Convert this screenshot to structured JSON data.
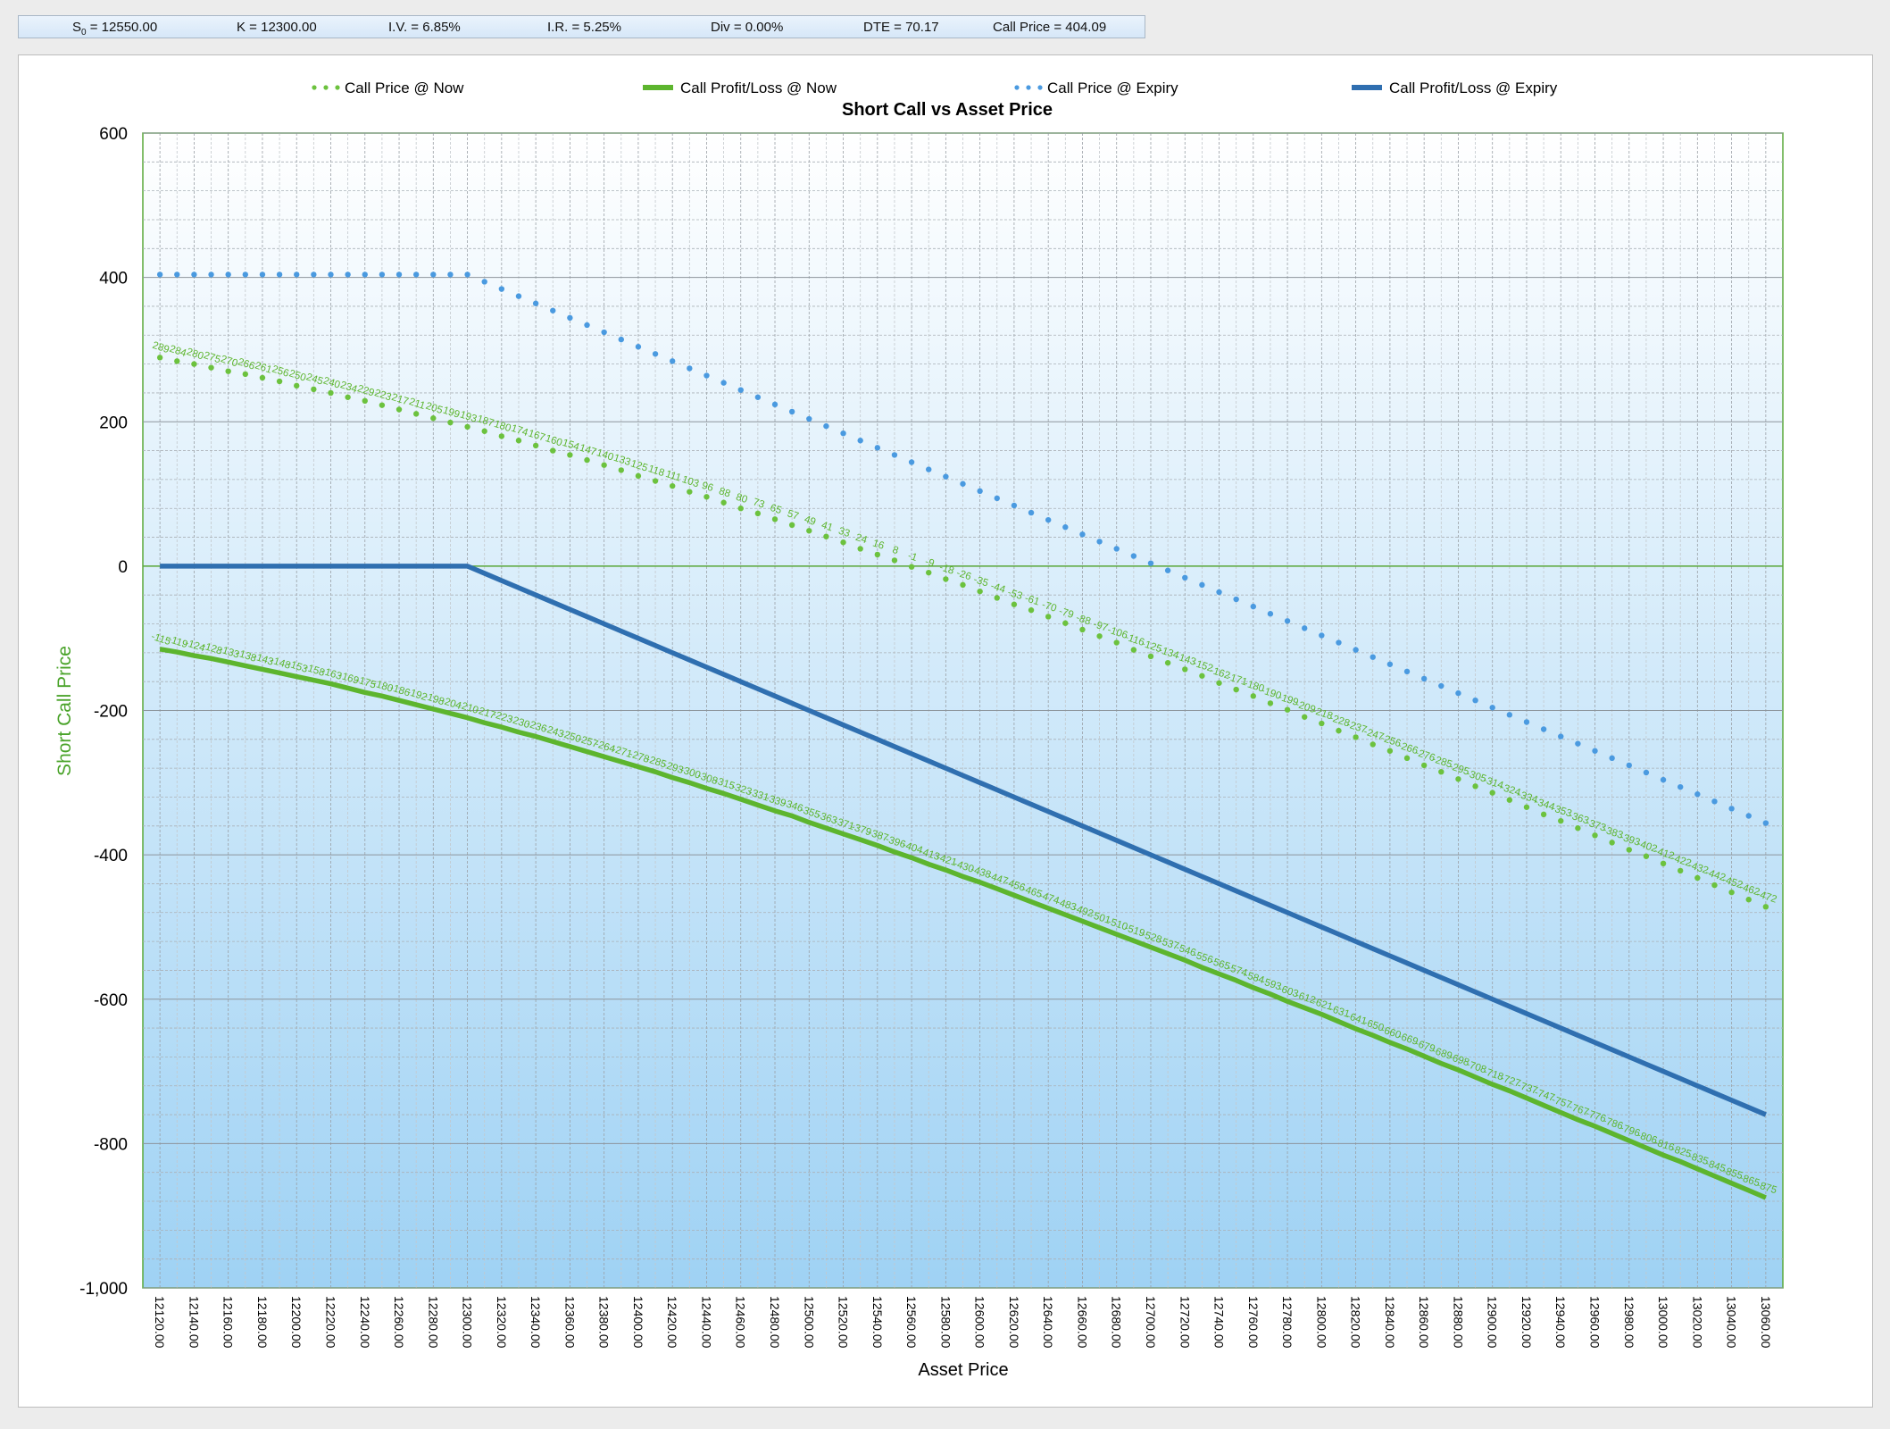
{
  "params": {
    "s0_label": "S",
    "s0_sub": "0",
    "s0_value": " = 12550.00",
    "k": "K = 12300.00",
    "iv": "I.V. = 6.85%",
    "ir": "I.R. = 5.25%",
    "div": "Div = 0.00%",
    "dte": "DTE = 70.17",
    "call_price": "Call Price = 404.09"
  },
  "colors": {
    "now": "#5db52e",
    "now_dots": "#6cc23e",
    "expiry": "#2f6fb0",
    "expiry_dots": "#4a9ae0",
    "plot_bg_top": "#ffffff",
    "plot_bg_bottom": "#9fd2f4",
    "plot_border": "#5aa83a",
    "ylabel": "#4aa32a"
  },
  "chart_data": {
    "type": "line",
    "title": "Short Call vs Asset Price",
    "xlabel": "Asset Price",
    "ylabel": "Short Call Price",
    "x_range": [
      12110,
      13070
    ],
    "ylim": [
      -1000,
      600
    ],
    "y_ticks": [
      "600",
      "400",
      "200",
      "0",
      "-200",
      "-400",
      "-600",
      "-800",
      "-1,000"
    ],
    "y_tick_values": [
      600,
      400,
      200,
      0,
      -200,
      -400,
      -600,
      -800,
      -1000
    ],
    "x_ticks": [
      "12120.00",
      "12140.00",
      "12160.00",
      "12180.00",
      "12200.00",
      "12220.00",
      "12240.00",
      "12260.00",
      "12280.00",
      "12300.00",
      "12320.00",
      "12340.00",
      "12360.00",
      "12380.00",
      "12400.00",
      "12420.00",
      "12440.00",
      "12460.00",
      "12480.00",
      "12500.00",
      "12520.00",
      "12540.00",
      "12560.00",
      "12580.00",
      "12600.00",
      "12620.00",
      "12640.00",
      "12660.00",
      "12680.00",
      "12700.00",
      "12720.00",
      "12740.00",
      "12760.00",
      "12780.00",
      "12800.00",
      "12820.00",
      "12840.00",
      "12860.00",
      "12880.00",
      "12900.00",
      "12920.00",
      "12940.00",
      "12960.00",
      "12980.00",
      "13000.00",
      "13020.00",
      "13040.00",
      "13060.00"
    ],
    "grid": true,
    "legend_position": "top",
    "x": [
      12120,
      12130,
      12140,
      12150,
      12160,
      12170,
      12180,
      12190,
      12200,
      12210,
      12220,
      12230,
      12240,
      12250,
      12260,
      12270,
      12280,
      12290,
      12300,
      12310,
      12320,
      12330,
      12340,
      12350,
      12360,
      12370,
      12380,
      12390,
      12400,
      12410,
      12420,
      12430,
      12440,
      12450,
      12460,
      12470,
      12480,
      12490,
      12500,
      12510,
      12520,
      12530,
      12540,
      12550,
      12560,
      12570,
      12580,
      12590,
      12600,
      12610,
      12620,
      12630,
      12640,
      12650,
      12660,
      12670,
      12680,
      12690,
      12700,
      12710,
      12720,
      12730,
      12740,
      12750,
      12760,
      12770,
      12780,
      12790,
      12800,
      12810,
      12820,
      12830,
      12840,
      12850,
      12860,
      12870,
      12880,
      12890,
      12900,
      12910,
      12920,
      12930,
      12940,
      12950,
      12960,
      12970,
      12980,
      12990,
      13000,
      13010,
      13020,
      13030,
      13040,
      13050,
      13060
    ],
    "series": [
      {
        "name": "Call Price @ Now",
        "style": "dots",
        "labeled": true,
        "values": [
          289,
          284,
          280,
          275,
          270,
          266,
          261,
          256,
          250,
          245,
          240,
          234,
          229,
          223,
          217,
          211,
          205,
          199,
          193,
          187,
          180,
          174,
          167,
          160,
          154,
          147,
          140,
          133,
          125,
          118,
          111,
          103,
          96,
          88,
          80,
          73,
          65,
          57,
          49,
          41,
          33,
          24,
          16,
          8,
          -1,
          -9,
          -18,
          -26,
          -35,
          -44,
          -53,
          -61,
          -70,
          -79,
          -88,
          -97,
          -106,
          -116,
          -125,
          -134,
          -143,
          -152,
          -162,
          -171,
          -180,
          -190,
          -199,
          -209,
          -218,
          -228,
          -237,
          -247,
          -256,
          -266,
          -276,
          -285,
          -295,
          -305,
          -314,
          -324,
          -334,
          -344,
          -353,
          -363,
          -373,
          -383,
          -393,
          -402,
          -412,
          -422,
          -432,
          -442,
          -452,
          -462,
          -472
        ]
      },
      {
        "name": "Call Profit/Loss @ Now",
        "style": "line",
        "labeled": true,
        "values": [
          -115,
          -119,
          -124,
          -128,
          -133,
          -138,
          -143,
          -148,
          -153,
          -158,
          -163,
          -169,
          -175,
          -180,
          -186,
          -192,
          -198,
          -204,
          -210,
          -217,
          -223,
          -230,
          -236,
          -243,
          -250,
          -257,
          -264,
          -271,
          -278,
          -285,
          -293,
          -300,
          -308,
          -315,
          -323,
          -331,
          -339,
          -346,
          -355,
          -363,
          -371,
          -379,
          -387,
          -396,
          -404,
          -413,
          -421,
          -430,
          -438,
          -447,
          -456,
          -465,
          -474,
          -483,
          -492,
          -501,
          -510,
          -519,
          -528,
          -537,
          -546,
          -556,
          -565,
          -574,
          -584,
          -593,
          -603,
          -612,
          -621,
          -631,
          -641,
          -650,
          -660,
          -669,
          -679,
          -689,
          -698,
          -708,
          -718,
          -727,
          -737,
          -747,
          -757,
          -767,
          -776,
          -786,
          -796,
          -806,
          -816,
          -825,
          -835,
          -845,
          -855,
          -865,
          -875
        ]
      },
      {
        "name": "Call Price @ Expiry",
        "style": "dots",
        "labeled": false,
        "values": [
          404,
          404,
          404,
          404,
          404,
          404,
          404,
          404,
          404,
          404,
          404,
          404,
          404,
          404,
          404,
          404,
          404,
          404,
          404,
          394,
          384,
          374,
          364,
          354,
          344,
          334,
          324,
          314,
          304,
          294,
          284,
          274,
          264,
          254,
          244,
          234,
          224,
          214,
          204,
          194,
          184,
          174,
          164,
          154,
          144,
          134,
          124,
          114,
          104,
          94,
          84,
          74,
          64,
          54,
          44,
          34,
          24,
          14,
          4,
          -6,
          -16,
          -26,
          -36,
          -46,
          -56,
          -66,
          -76,
          -86,
          -96,
          -106,
          -116,
          -126,
          -136,
          -146,
          -156,
          -166,
          -176,
          -186,
          -196,
          -206,
          -216,
          -226,
          -236,
          -246,
          -256,
          -266,
          -276,
          -286,
          -296,
          -306,
          -316,
          -326,
          -336,
          -346,
          -356
        ]
      },
      {
        "name": "Call Profit/Loss @ Expiry",
        "style": "line",
        "labeled": false,
        "values": [
          0,
          0,
          0,
          0,
          0,
          0,
          0,
          0,
          0,
          0,
          0,
          0,
          0,
          0,
          0,
          0,
          0,
          0,
          0,
          -10,
          -20,
          -30,
          -40,
          -50,
          -60,
          -70,
          -80,
          -90,
          -100,
          -110,
          -120,
          -130,
          -140,
          -150,
          -160,
          -170,
          -180,
          -190,
          -200,
          -210,
          -220,
          -230,
          -240,
          -250,
          -260,
          -270,
          -280,
          -290,
          -300,
          -310,
          -320,
          -330,
          -340,
          -350,
          -360,
          -370,
          -380,
          -390,
          -400,
          -410,
          -420,
          -430,
          -440,
          -450,
          -460,
          -470,
          -480,
          -490,
          -500,
          -510,
          -520,
          -530,
          -540,
          -550,
          -560,
          -570,
          -580,
          -590,
          -600,
          -610,
          -620,
          -630,
          -640,
          -650,
          -660,
          -670,
          -680,
          -690,
          -700,
          -710,
          -720,
          -730,
          -740,
          -750,
          -760
        ]
      }
    ]
  }
}
